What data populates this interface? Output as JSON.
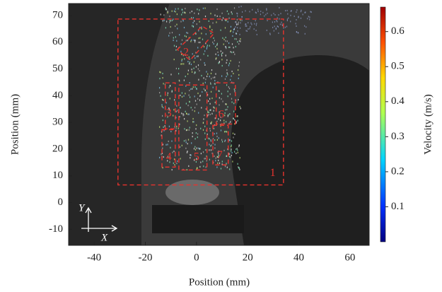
{
  "chart_data": {
    "type": "image",
    "xlabel": "Position (mm)",
    "ylabel": "Position (mm)",
    "xlim": [
      -50,
      67.5
    ],
    "ylim": [
      -16,
      74.5
    ],
    "xticks": [
      -40,
      -20,
      0,
      20,
      40,
      60
    ],
    "yticks": [
      -10,
      0,
      10,
      20,
      30,
      40,
      50,
      60,
      70
    ],
    "colorbar": {
      "label": "Velocity (m/s)",
      "lim": [
        0,
        0.67
      ],
      "ticks": [
        0.1,
        0.2,
        0.3,
        0.4,
        0.5,
        0.6
      ]
    },
    "axes_arrows": {
      "y": "Y",
      "x": "X"
    },
    "region_color": "#e8332e",
    "regions": [
      {
        "label": "1",
        "points": [
          [
            -30.7,
            68.7
          ],
          [
            34,
            68.7
          ],
          [
            34,
            6.6
          ],
          [
            -30.7,
            6.6
          ]
        ],
        "label_x": 29.8,
        "label_y": 10.9
      },
      {
        "label": "2",
        "points": [
          [
            -7.5,
            57.3
          ],
          [
            2.2,
            66
          ],
          [
            6.9,
            63.4
          ],
          [
            -2.5,
            53.3
          ]
        ],
        "label_x": -4.1,
        "label_y": 56
      },
      {
        "label": "3",
        "points": [
          [
            -12.2,
            44.8
          ],
          [
            -8.3,
            44.8
          ],
          [
            -8.3,
            27.6
          ],
          [
            -12.2,
            27.6
          ]
        ],
        "label_x": -10.8,
        "label_y": 33.3
      },
      {
        "label": "4",
        "points": [
          [
            -13.5,
            27.3
          ],
          [
            -8.3,
            27.3
          ],
          [
            -8.3,
            13.3
          ],
          [
            -13.5,
            13.3
          ]
        ],
        "label_x": -10.8,
        "label_y": 16.9
      },
      {
        "label": "5",
        "points": [
          [
            -6.9,
            44
          ],
          [
            4.1,
            44
          ],
          [
            4.1,
            12.2
          ],
          [
            -6.9,
            12.2
          ]
        ],
        "label_x": 0,
        "label_y": 16.9
      },
      {
        "label": "6",
        "points": [
          [
            7.7,
            44.8
          ],
          [
            15.2,
            44.8
          ],
          [
            15.2,
            29.4
          ],
          [
            7.7,
            29.4
          ]
        ],
        "label_x": 9.7,
        "label_y": 32.8
      },
      {
        "label": "7",
        "points": [
          [
            6.4,
            28.9
          ],
          [
            12.4,
            28.9
          ],
          [
            12.4,
            14.1
          ],
          [
            6.4,
            14.1
          ]
        ],
        "label_x": 9.1,
        "label_y": 17.5
      }
    ]
  }
}
